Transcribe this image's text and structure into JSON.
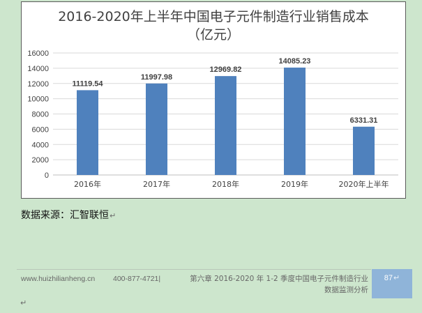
{
  "chart_data": {
    "type": "bar",
    "title": "2016-2020年上半年中国电子元件制造行业销售成本",
    "subtitle": "（亿元）",
    "categories": [
      "2016年",
      "2017年",
      "2018年",
      "2019年",
      "2020年上半年"
    ],
    "values": [
      11119.54,
      11997.98,
      12969.82,
      14085.23,
      6331.31
    ],
    "data_labels": [
      "11119.54",
      "11997.98",
      "12969.82",
      "14085.23",
      "6331.31"
    ],
    "yticks": [
      "0",
      "2000",
      "4000",
      "6000",
      "8000",
      "10000",
      "12000",
      "14000",
      "16000"
    ],
    "ylim": [
      0,
      16000
    ],
    "grid": true,
    "legend": "none",
    "bar_color": "#4f81bd"
  },
  "source": "数据来源：汇智联恒",
  "footer": {
    "website": "www.huizhilianheng.cn",
    "phone": "400-877-4721",
    "chapter": "第六章 2016-2020 年 1-2 季度中国电子元件制造行业数据监测分析",
    "page": "87"
  },
  "marks": {
    "paragraph": "↵"
  }
}
